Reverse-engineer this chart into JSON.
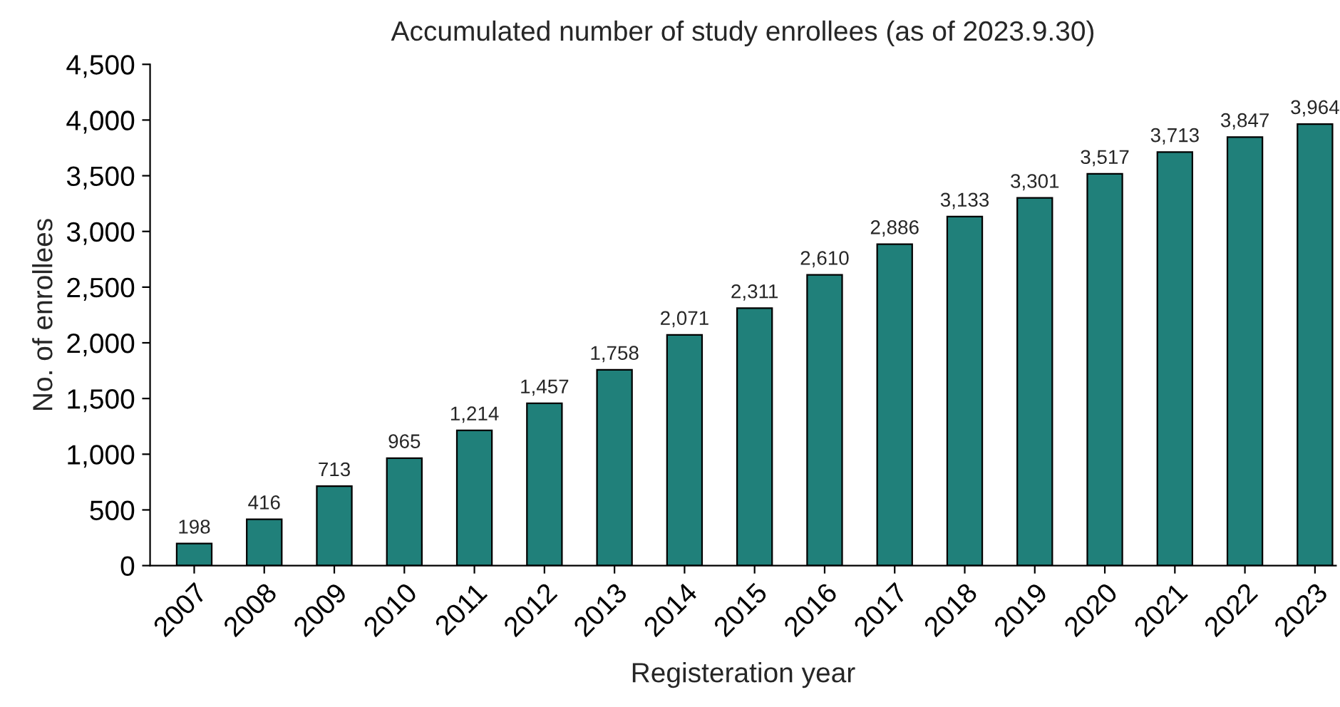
{
  "chart_data": {
    "type": "bar",
    "title": "Accumulated number of study enrollees (as of 2023.9.30)",
    "xlabel": "Registeration year",
    "ylabel": "No. of enrollees",
    "categories": [
      "2007",
      "2008",
      "2009",
      "2010",
      "2011",
      "2012",
      "2013",
      "2014",
      "2015",
      "2016",
      "2017",
      "2018",
      "2019",
      "2020",
      "2021",
      "2022",
      "2023"
    ],
    "values": [
      198,
      416,
      713,
      965,
      1214,
      1457,
      1758,
      2071,
      2311,
      2610,
      2886,
      3133,
      3301,
      3517,
      3713,
      3847,
      3964
    ],
    "value_labels": [
      "198",
      "416",
      "713",
      "965",
      "1,214",
      "1,457",
      "1,758",
      "2,071",
      "2,311",
      "2,610",
      "2,886",
      "3,133",
      "3,301",
      "3,517",
      "3,713",
      "3,847",
      "3,964"
    ],
    "color": "#20807a",
    "ylim": [
      0,
      4500
    ],
    "yticks": [
      0,
      500,
      {
        "value": 1000,
        "label": "1,000"
      },
      {
        "value": 1500,
        "label": "1,500"
      },
      {
        "value": 2000,
        "label": "2,000"
      },
      {
        "value": 2500,
        "label": "2,500"
      },
      {
        "value": 3000,
        "label": "3,000"
      },
      {
        "value": 3500,
        "label": "3,500"
      },
      {
        "value": 4000,
        "label": "4,000"
      },
      {
        "value": 4500,
        "label": "4,500"
      }
    ],
    "grid": false,
    "legend": false
  }
}
